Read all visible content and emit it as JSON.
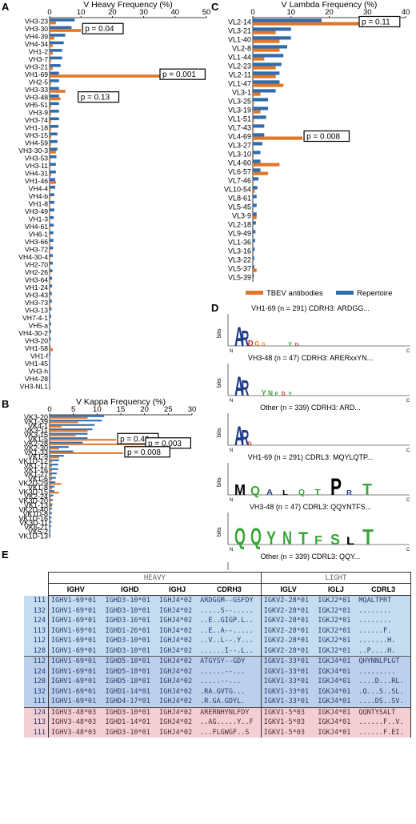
{
  "panel_labels": {
    "a": "A",
    "b": "B",
    "c": "C",
    "d": "D",
    "e": "E"
  },
  "colors": {
    "tbev": "#e0762a",
    "repertoire": "#2f6cad"
  },
  "legend": {
    "tbev": "TBEV antibodies",
    "repertoire": "Repertoire"
  },
  "chart_data": [
    {
      "id": "heavy",
      "type": "bar",
      "orientation": "horizontal",
      "title": "V Heavy Frequency (%)",
      "xlim": [
        0,
        50
      ],
      "ticks": [
        0,
        10,
        20,
        30,
        40,
        50
      ],
      "categories": [
        "VH3-23",
        "VH3-30",
        "VH4-39",
        "VH4-34",
        "VH1-2",
        "VH3-7",
        "VH3-21",
        "VH1-69",
        "VH2-5",
        "VH3-33",
        "VH3-48",
        "VH5-51",
        "VH3-9",
        "VH3-74",
        "VH1-18",
        "VH3-15",
        "VH4-59",
        "VH3-30-3",
        "VH3-53",
        "VH3-11",
        "VH4-31",
        "VH1-46",
        "VH4-4",
        "VH4-b",
        "VH1-8",
        "VH3-49",
        "VH1-3",
        "VH4-61",
        "VH6-1",
        "VH3-66",
        "VH3-72",
        "VH4-30-4",
        "VH2-70",
        "VH2-26",
        "VH3-64",
        "VH1-24",
        "VH3-43",
        "VH3-73",
        "VH3-13",
        "VH7-4-1",
        "VH5-a",
        "VH4-30-2",
        "VH3-20",
        "VH1-58",
        "VH1-f",
        "VH1-45",
        "VH3-h",
        "VH4-28",
        "VH3-NL1"
      ],
      "series": [
        {
          "name": "TBEV antibodies",
          "values": [
            2,
            10,
            1.5,
            1,
            1,
            0.5,
            1,
            44,
            0.5,
            5,
            3.5,
            0.5,
            0.5,
            0.5,
            0.5,
            0.5,
            0.5,
            2,
            0.3,
            0.3,
            0.5,
            2,
            0.3,
            0.3,
            0.2,
            0.2,
            0.2,
            0.2,
            0.2,
            0.2,
            0.2,
            0.3,
            0.2,
            0.2,
            0.2,
            0.2,
            0.2,
            0.2,
            0.1,
            0.1,
            0.1,
            0.1,
            0.1,
            1,
            0,
            0,
            0,
            0,
            0
          ]
        },
        {
          "name": "Repertoire",
          "values": [
            8,
            7,
            5,
            4.5,
            4,
            4,
            3.5,
            3,
            3,
            3,
            3,
            3,
            3,
            3,
            2.8,
            2.5,
            2.5,
            2.5,
            2.2,
            2,
            2,
            1.8,
            1.8,
            1.5,
            1.5,
            1.5,
            1.3,
            1.3,
            1.2,
            1.2,
            1.1,
            1,
            1,
            0.9,
            0.8,
            0.8,
            0.7,
            0.7,
            0.6,
            0.5,
            0.5,
            0.5,
            0.4,
            0.3,
            0.3,
            0.2,
            0.2,
            0.2,
            0.1
          ]
        }
      ],
      "annotations": [
        {
          "category": "VH3-30",
          "text": "p = 0.04"
        },
        {
          "category": "VH1-69",
          "text": "p = 0.001"
        },
        {
          "category": "VH3-48",
          "text": "p = 0.13"
        }
      ]
    },
    {
      "id": "kappa",
      "type": "bar",
      "orientation": "horizontal",
      "title": "V Kappa Frequency (%)",
      "xlim": [
        0,
        30
      ],
      "ticks": [
        0,
        5,
        10,
        15,
        20,
        25,
        30
      ],
      "categories": [
        "VK3-20",
        "VK1-39",
        "VK4-1",
        "VK3-11",
        "VK3-15",
        "VK1-5",
        "VK2-28",
        "VK2-30",
        "VK1-33",
        "VK1-9",
        "VK1D-12",
        "VK1-17",
        "VK1-16",
        "VK1-27",
        "VK1-6",
        "VK2D-29",
        "VK1-8",
        "VK3D-15",
        "VK2-24",
        "VK3D-20",
        "VK1-13",
        "VK2D-40",
        "VK1D-8",
        "VK1D-16",
        "VK3D-11",
        "VK6-21",
        "VK5-2",
        "VK1D-13"
      ],
      "series": [
        {
          "name": "TBEV antibodies",
          "values": [
            8,
            6,
            2.5,
            8,
            5.5,
            14,
            24,
            2,
            15.5,
            2,
            0.5,
            0.5,
            0.5,
            0.5,
            0.5,
            2.5,
            0.5,
            2,
            0.3,
            0.3,
            0.5,
            0,
            0,
            0,
            0,
            0,
            0,
            0
          ]
        },
        {
          "name": "Repertoire",
          "values": [
            11.5,
            11,
            9.5,
            9,
            8,
            8,
            7,
            4,
            5,
            3,
            2,
            1.8,
            1.8,
            1.5,
            1.3,
            1.2,
            1,
            1,
            0.8,
            0.7,
            0.6,
            0.5,
            0.5,
            0.4,
            0.4,
            0.3,
            0.2,
            0.2
          ]
        }
      ],
      "annotations": [
        {
          "category": "VK1-5",
          "text": "p = 0.42"
        },
        {
          "category": "VK2-28",
          "text": "p = 0.003"
        },
        {
          "category": "VK1-33",
          "text": "p = 0.008"
        }
      ]
    },
    {
      "id": "lambda",
      "type": "bar",
      "orientation": "horizontal",
      "title": "V Lambda Frequency (%)",
      "xlim": [
        0,
        40
      ],
      "ticks": [
        0,
        10,
        20,
        30,
        40
      ],
      "categories": [
        "VL2-14",
        "VL3-21",
        "VL1-40",
        "VL2-8",
        "VL1-44",
        "VL2-23",
        "VL2-11",
        "VL1-47",
        "VL3-1",
        "VL3-25",
        "VL3-19",
        "VL1-51",
        "VL7-43",
        "VL4-69",
        "VL3-27",
        "VL3-10",
        "VL4-60",
        "VL6-57",
        "VL7-46",
        "VL10-54",
        "VL8-61",
        "VL5-45",
        "VL3-9",
        "VL2-18",
        "VL9-49",
        "VL1-36",
        "VL3-16",
        "VL3-22",
        "VL5-37",
        "VL5-39"
      ],
      "series": [
        {
          "name": "TBEV antibodies",
          "values": [
            33,
            6,
            7,
            7,
            3,
            6,
            6,
            8,
            2,
            0.3,
            2,
            0.3,
            0.2,
            13,
            0.2,
            0.2,
            7,
            4,
            0.2,
            0.5,
            0,
            0,
            1,
            0,
            0,
            0,
            0,
            0,
            1,
            0
          ]
        },
        {
          "name": "Repertoire",
          "values": [
            18,
            10,
            10,
            9,
            8,
            7.5,
            7,
            7,
            6,
            4,
            4,
            3.5,
            3,
            3,
            2.5,
            2,
            2,
            2,
            1.5,
            1.2,
            1,
            1,
            1,
            0.8,
            0.7,
            0.6,
            0.5,
            0.4,
            0.4,
            0.3
          ]
        }
      ],
      "annotations": [
        {
          "category": "VL2-14",
          "text": "p = 0.11"
        },
        {
          "category": "VL4-69",
          "text": "p = 0.008"
        }
      ]
    }
  ],
  "logos": {
    "y_label": "bits",
    "titles": [
      "VH1-69 (n = 291) CDRH3: ARDGG...",
      "VH3-48 (n = 47) CDRH3: ARERxxYN...",
      "Other (n = 339) CDRH3: ARD...",
      "VH1-69 (n = 291) CDRL3: MQYLQTP...",
      "VH3-48 (n = 47) CDRL3: QQYNTFS...",
      "Other (n = 339) CDRL3: QQY..."
    ],
    "nterm": "N",
    "cterm": "C"
  },
  "table": {
    "group_heavy": "HEAVY",
    "group_light": "LIGHT",
    "headers": [
      "IGHV",
      "IGHD",
      "IGHJ",
      "CDRH3",
      "IGLV",
      "IGLJ",
      "CDRL3"
    ],
    "rows": [
      {
        "n": "111",
        "c": [
          "IGHV1-69*01",
          "IGHD3-10*01",
          "IGHJ4*02",
          "ARDGGM--GSFDY",
          "IGKV2-28*01",
          "IGKJ2*01",
          "MQALTPRT"
        ],
        "g": "blue"
      },
      {
        "n": "132",
        "c": [
          "IGHV1-69*01",
          "IGHD3-10*01",
          "IGHJ4*02",
          ".....S--.....",
          "IGKV2-28*01",
          "IGKJ2*01",
          "........"
        ],
        "g": "blue"
      },
      {
        "n": "124",
        "c": [
          "IGHV1-69*01",
          "IGHD3-16*01",
          "IGHJ4*02",
          "..E..GIGP.L..",
          "IGKV2-28*01",
          "IGKJ2*01",
          "........"
        ],
        "g": "blue"
      },
      {
        "n": "113",
        "c": [
          "IGHV1-69*01",
          "IGHD1-26*01",
          "IGHJ4*02",
          "..E..A--.....",
          "IGKV2-28*01",
          "IGKJ2*01",
          "......F."
        ],
        "g": "blue"
      },
      {
        "n": "112",
        "c": [
          "IGHV1-69*01",
          "IGHD3-10*01",
          "IGHJ4*02",
          "..V..L--.Y...",
          "IGKV2-28*01",
          "IGKJ2*01",
          ".......H."
        ],
        "g": "blue"
      },
      {
        "n": "128",
        "c": [
          "IGHV1-69*01",
          "IGHD3-10*01",
          "IGHJ4*02",
          "......I--.L..",
          "IGKV2-28*01",
          "IGKJ2*01",
          "..P....H."
        ],
        "g": "blue"
      },
      {
        "n": "112",
        "c": [
          "IGHV1-69*01",
          "IGHD5-18*01",
          "IGHJ4*02",
          "ATGYSY--GDY",
          "IGKV1-33*01",
          "IGKJ4*01",
          "QHYNNLPLGT"
        ],
        "g": "blue2",
        "top": true
      },
      {
        "n": "124",
        "c": [
          "IGHV1-69*01",
          "IGHD5-18*01",
          "IGHJ4*02",
          "......--...",
          "IGKV1-33*01",
          "IGKJ4*01",
          "........."
        ],
        "g": "blue2"
      },
      {
        "n": "128",
        "c": [
          "IGHV1-69*01",
          "IGHD5-18*01",
          "IGHJ4*02",
          ".....--...",
          "IGKV1-33*01",
          "IGKJ4*01",
          "....D...RL."
        ],
        "g": "blue2"
      },
      {
        "n": "132",
        "c": [
          "IGHV1-69*01",
          "IGHD1-14*01",
          "IGHJ4*02",
          ".RA.GVTG...",
          "IGKV1-33*01",
          "IGKJ4*01",
          ".Q...S..SL."
        ],
        "g": "blue2"
      },
      {
        "n": "111",
        "c": [
          "IGHV1-69*01",
          "IGHD4-17*01",
          "IGHJ4*02",
          ".R.GA.GDYL.",
          "IGKV1-33*01",
          "IGKJ4*01",
          "....DS..SV."
        ],
        "g": "blue2"
      },
      {
        "n": "124",
        "c": [
          "IGHV3-48*03",
          "IGHD3-10*01",
          "IGHJ4*02",
          "ARERNHYNLFDY",
          "IGKV1-5*03",
          "IGKJ4*01",
          "QQNTYSALT"
        ],
        "g": "pink",
        "top": true
      },
      {
        "n": "113",
        "c": [
          "IGHV3-48*03",
          "IGHD1-14*01",
          "IGHJ4*02",
          "..AG.....Y..F",
          "IGKV1-5*03",
          "IGKJ4*01",
          "......F..V."
        ],
        "g": "pink"
      },
      {
        "n": "111",
        "c": [
          "IGHV3-48*03",
          "IGHD3-10*01",
          "IGHJ4*02",
          "...FLGWGF..S",
          "IGKV1-5*03",
          "IGKJ4*01",
          "......F.EI."
        ],
        "g": "pink"
      }
    ]
  }
}
